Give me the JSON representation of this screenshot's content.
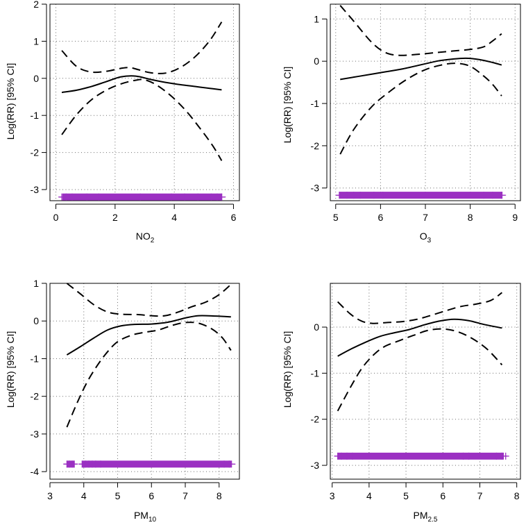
{
  "figure": {
    "ylabel": "Log(RR) [95% CI]",
    "rug_color": "#9b30c2"
  },
  "chart_data": [
    {
      "type": "line",
      "panel": "top-left",
      "xlabel_main": "NO",
      "xlabel_sub": "2",
      "ylabel": "Log(RR) [95% CI]",
      "xlim": [
        -0.2,
        6.2
      ],
      "ylim": [
        -3.3,
        2.0
      ],
      "xticks": [
        0,
        2,
        4,
        6
      ],
      "xtick_labels": [
        "0",
        "2",
        "4",
        "6"
      ],
      "yticks": [
        -3,
        -2,
        -1,
        0,
        1,
        2
      ],
      "ytick_labels": [
        "-3",
        "-2",
        "-1",
        "0",
        "1",
        "2"
      ],
      "grid": true,
      "series": [
        {
          "name": "estimate",
          "style": "solid",
          "x": [
            0.2,
            0.7,
            1.2,
            1.7,
            2.2,
            2.7,
            3.2,
            3.7,
            4.2,
            4.7,
            5.2,
            5.6
          ],
          "y": [
            -0.38,
            -0.32,
            -0.22,
            -0.09,
            0.04,
            0.06,
            -0.03,
            -0.11,
            -0.17,
            -0.22,
            -0.27,
            -0.31
          ]
        },
        {
          "name": "upper 95% CI",
          "style": "dashed",
          "x": [
            0.2,
            0.7,
            1.2,
            1.7,
            2.2,
            2.5,
            2.8,
            3.2,
            3.7,
            4.2,
            4.7,
            5.2,
            5.6
          ],
          "y": [
            0.75,
            0.32,
            0.17,
            0.19,
            0.27,
            0.29,
            0.23,
            0.15,
            0.14,
            0.29,
            0.58,
            1.02,
            1.52
          ]
        },
        {
          "name": "lower 95% CI",
          "style": "dashed",
          "x": [
            0.2,
            0.7,
            1.2,
            1.7,
            2.2,
            2.7,
            3.0,
            3.4,
            3.9,
            4.4,
            4.9,
            5.3,
            5.6
          ],
          "y": [
            -1.52,
            -0.98,
            -0.58,
            -0.32,
            -0.15,
            -0.05,
            -0.04,
            -0.18,
            -0.48,
            -0.88,
            -1.38,
            -1.82,
            -2.22
          ]
        }
      ],
      "rug": {
        "y": -3.2,
        "segments": [
          [
            0.22,
            5.62
          ]
        ],
        "isolated": [
          0.2,
          0.35,
          0.55,
          1.05,
          1.45,
          2.85,
          3.9,
          4.35,
          4.8,
          5.25,
          5.45,
          5.6
        ]
      }
    },
    {
      "type": "line",
      "panel": "top-right",
      "xlabel_main": "O",
      "xlabel_sub": "3",
      "ylabel": "Log(RR) [95% CI]",
      "xlim": [
        4.88,
        9.12
      ],
      "ylim": [
        -3.3,
        1.35
      ],
      "xticks": [
        5,
        6,
        7,
        8,
        9
      ],
      "xtick_labels": [
        "5",
        "6",
        "7",
        "8",
        "9"
      ],
      "yticks": [
        -3,
        -2,
        -1,
        0,
        1
      ],
      "ytick_labels": [
        "-3",
        "-2",
        "-1",
        "0",
        "1"
      ],
      "grid": true,
      "series": [
        {
          "name": "estimate",
          "style": "solid",
          "x": [
            5.1,
            5.5,
            6.0,
            6.5,
            7.0,
            7.3,
            7.6,
            7.9,
            8.2,
            8.5,
            8.7
          ],
          "y": [
            -0.43,
            -0.36,
            -0.27,
            -0.18,
            -0.06,
            0.01,
            0.05,
            0.07,
            0.04,
            -0.03,
            -0.09
          ]
        },
        {
          "name": "upper 95% CI",
          "style": "dashed",
          "x": [
            5.1,
            5.4,
            5.8,
            6.1,
            6.4,
            6.8,
            7.2,
            7.6,
            8.0,
            8.3,
            8.5,
            8.7
          ],
          "y": [
            1.32,
            0.95,
            0.45,
            0.21,
            0.14,
            0.16,
            0.2,
            0.24,
            0.28,
            0.34,
            0.48,
            0.65
          ]
        },
        {
          "name": "lower 95% CI",
          "style": "dashed",
          "x": [
            5.1,
            5.4,
            5.8,
            6.2,
            6.6,
            7.0,
            7.4,
            7.7,
            8.0,
            8.3,
            8.5,
            8.7
          ],
          "y": [
            -2.2,
            -1.62,
            -1.08,
            -0.72,
            -0.42,
            -0.2,
            -0.08,
            -0.05,
            -0.12,
            -0.35,
            -0.55,
            -0.82
          ]
        }
      ],
      "rug": {
        "y": -3.17,
        "segments": [
          [
            5.08,
            8.72
          ]
        ],
        "isolated": [
          5.08,
          5.25,
          5.4,
          5.55,
          5.85,
          6.05,
          8.3,
          8.5,
          8.7
        ]
      }
    },
    {
      "type": "line",
      "panel": "bottom-left",
      "xlabel_main": "PM",
      "xlabel_sub": "10",
      "ylabel": "Log(RR) [95% CI]",
      "xlim": [
        3.0,
        8.6
      ],
      "ylim": [
        -4.2,
        1.0
      ],
      "xticks": [
        3,
        4,
        5,
        6,
        7,
        8
      ],
      "xtick_labels": [
        "3",
        "4",
        "5",
        "6",
        "7",
        "8"
      ],
      "yticks": [
        -4,
        -3,
        -2,
        -1,
        0,
        1
      ],
      "ytick_labels": [
        "-4",
        "-3",
        "-2",
        "-1",
        "0",
        "1"
      ],
      "grid": true,
      "series": [
        {
          "name": "estimate",
          "style": "solid",
          "x": [
            3.5,
            3.9,
            4.3,
            4.7,
            5.1,
            5.5,
            6.0,
            6.5,
            7.0,
            7.4,
            7.9,
            8.35
          ],
          "y": [
            -0.9,
            -0.68,
            -0.45,
            -0.24,
            -0.13,
            -0.09,
            -0.08,
            -0.03,
            0.08,
            0.14,
            0.13,
            0.11
          ]
        },
        {
          "name": "upper 95% CI",
          "style": "dashed",
          "x": [
            3.5,
            3.9,
            4.3,
            4.7,
            5.1,
            5.6,
            6.0,
            6.4,
            6.8,
            7.2,
            7.6,
            8.0,
            8.35
          ],
          "y": [
            1.0,
            0.72,
            0.43,
            0.24,
            0.18,
            0.17,
            0.14,
            0.14,
            0.24,
            0.38,
            0.5,
            0.7,
            0.97
          ]
        },
        {
          "name": "lower 95% CI",
          "style": "dashed",
          "x": [
            3.5,
            3.8,
            4.1,
            4.4,
            4.7,
            5.0,
            5.4,
            5.8,
            6.2,
            6.6,
            7.0,
            7.4,
            7.8,
            8.1,
            8.35
          ],
          "y": [
            -2.82,
            -2.18,
            -1.62,
            -1.18,
            -0.82,
            -0.55,
            -0.38,
            -0.3,
            -0.24,
            -0.12,
            -0.04,
            -0.06,
            -0.22,
            -0.45,
            -0.78
          ]
        }
      ],
      "rug": {
        "y": -3.8,
        "segments": [
          [
            3.5,
            3.72
          ],
          [
            3.95,
            8.38
          ]
        ],
        "isolated": [
          3.5,
          3.58,
          3.66,
          3.72,
          3.95,
          4.05,
          4.15,
          4.25,
          4.35,
          4.5,
          8.15,
          8.3
        ]
      }
    },
    {
      "type": "line",
      "panel": "bottom-right",
      "xlabel_main": "PM",
      "xlabel_sub": "2.5",
      "ylabel": "Log(RR) [95% CI]",
      "xlim": [
        2.95,
        8.1
      ],
      "ylim": [
        -3.3,
        0.95
      ],
      "xticks": [
        3,
        4,
        5,
        6,
        7,
        8
      ],
      "xtick_labels": [
        "3",
        "4",
        "5",
        "6",
        "7",
        "8"
      ],
      "yticks": [
        -3,
        -2,
        -1,
        0
      ],
      "ytick_labels": [
        "-3",
        "-2",
        "-1",
        "0"
      ],
      "grid": true,
      "series": [
        {
          "name": "estimate",
          "style": "solid",
          "x": [
            3.15,
            3.5,
            3.9,
            4.3,
            4.7,
            5.1,
            5.5,
            5.9,
            6.3,
            6.7,
            7.1,
            7.6
          ],
          "y": [
            -0.63,
            -0.48,
            -0.33,
            -0.2,
            -0.12,
            -0.05,
            0.05,
            0.13,
            0.17,
            0.14,
            0.06,
            -0.02
          ]
        },
        {
          "name": "upper 95% CI",
          "style": "dashed",
          "x": [
            3.15,
            3.5,
            3.8,
            4.1,
            4.5,
            4.9,
            5.3,
            5.7,
            6.1,
            6.5,
            6.9,
            7.3,
            7.6
          ],
          "y": [
            0.55,
            0.28,
            0.13,
            0.08,
            0.1,
            0.12,
            0.17,
            0.26,
            0.36,
            0.45,
            0.5,
            0.58,
            0.75
          ]
        },
        {
          "name": "lower 95% CI",
          "style": "dashed",
          "x": [
            3.15,
            3.5,
            3.8,
            4.1,
            4.4,
            4.8,
            5.2,
            5.6,
            6.0,
            6.4,
            6.8,
            7.2,
            7.6
          ],
          "y": [
            -1.82,
            -1.3,
            -0.9,
            -0.62,
            -0.43,
            -0.3,
            -0.18,
            -0.07,
            -0.04,
            -0.1,
            -0.25,
            -0.48,
            -0.82
          ]
        }
      ],
      "rug": {
        "y": -2.8,
        "segments": [
          [
            3.15,
            7.65
          ]
        ],
        "isolated": [
          3.15,
          3.25,
          3.4,
          3.55,
          6.55,
          6.7,
          7.45,
          7.6,
          7.7
        ]
      }
    }
  ]
}
